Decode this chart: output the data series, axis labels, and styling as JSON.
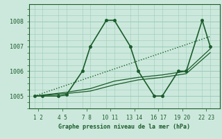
{
  "bg_color": "#cce8dc",
  "grid_color": "#99ccb8",
  "line_color": "#1a5c2a",
  "title": "Graphe pression niveau de la mer (hPa)",
  "ylim": [
    1004.5,
    1008.7
  ],
  "yticks": [
    1005,
    1006,
    1007,
    1008
  ],
  "xlim": [
    0.3,
    24.2
  ],
  "series": [
    {
      "x": [
        1,
        23
      ],
      "y": [
        1005.0,
        1007.4
      ],
      "style": ":",
      "marker": "None",
      "markersize": 0,
      "linewidth": 1.0
    },
    {
      "x": [
        1,
        5,
        8,
        11,
        14,
        17,
        20,
        23
      ],
      "y": [
        1005.0,
        1005.1,
        1005.2,
        1005.45,
        1005.65,
        1005.75,
        1005.9,
        1006.75
      ],
      "style": "-",
      "marker": "None",
      "markersize": 0,
      "linewidth": 0.9
    },
    {
      "x": [
        1,
        5,
        8,
        11,
        14,
        17,
        20,
        23
      ],
      "y": [
        1005.0,
        1005.15,
        1005.3,
        1005.6,
        1005.75,
        1005.85,
        1006.0,
        1006.9
      ],
      "style": "-",
      "marker": "None",
      "markersize": 0,
      "linewidth": 0.9
    },
    {
      "x": [
        1,
        2,
        4,
        5,
        7,
        8,
        10,
        11,
        13,
        14,
        16,
        17,
        19,
        20,
        22,
        23
      ],
      "y": [
        1005.0,
        1005.0,
        1005.0,
        1005.05,
        1006.0,
        1007.0,
        1008.05,
        1008.05,
        1007.0,
        1006.0,
        1005.0,
        1005.0,
        1006.0,
        1006.0,
        1008.05,
        1007.0
      ],
      "style": "-",
      "marker": "o",
      "markersize": 2.5,
      "linewidth": 1.2
    }
  ],
  "xtick_labels": [
    "1",
    "2",
    "4",
    "5",
    "7",
    "8",
    "10",
    "11",
    "13",
    "14",
    "16",
    "17",
    "19",
    "20",
    "22",
    "23"
  ],
  "grid_x_positions": [
    1,
    2,
    4,
    5,
    7,
    8,
    10,
    11,
    13,
    14,
    16,
    17,
    19,
    20,
    22,
    23
  ]
}
